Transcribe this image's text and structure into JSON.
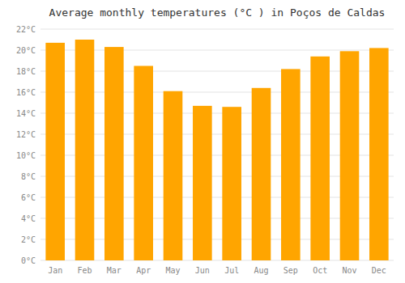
{
  "chart_data": {
    "type": "bar",
    "title": "Average monthly temperatures (°C ) in Poços de Caldas",
    "categories": [
      "Jan",
      "Feb",
      "Mar",
      "Apr",
      "May",
      "Jun",
      "Jul",
      "Aug",
      "Sep",
      "Oct",
      "Nov",
      "Dec"
    ],
    "values": [
      20.7,
      21.0,
      20.3,
      18.5,
      16.1,
      14.7,
      14.6,
      16.4,
      18.2,
      19.4,
      19.9,
      20.2
    ],
    "color": "#FFA500",
    "ylim": [
      0,
      22
    ],
    "yticks": [
      {
        "value": 0,
        "label": "0°C"
      },
      {
        "value": 2,
        "label": "2°C"
      },
      {
        "value": 4,
        "label": "4°C"
      },
      {
        "value": 6,
        "label": "6°C"
      },
      {
        "value": 8,
        "label": "8°C"
      },
      {
        "value": 10,
        "label": "10°C"
      },
      {
        "value": 12,
        "label": "12°C"
      },
      {
        "value": 14,
        "label": "14°C"
      },
      {
        "value": 16,
        "label": "16°C"
      },
      {
        "value": 18,
        "label": "18°C"
      },
      {
        "value": 20,
        "label": "20°C"
      },
      {
        "value": 22,
        "label": "22°C"
      }
    ],
    "grid": true
  }
}
